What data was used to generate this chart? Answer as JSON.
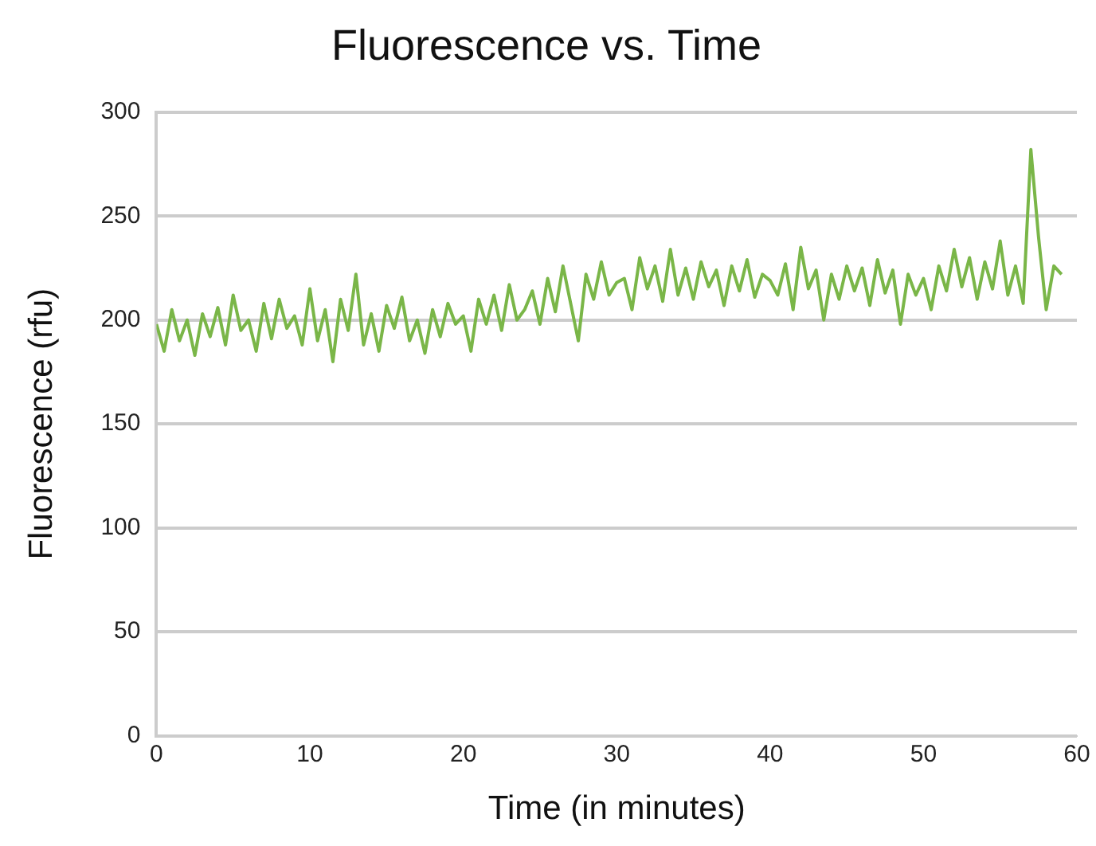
{
  "chart_data": {
    "type": "line",
    "title": "Fluorescence vs. Time",
    "xlabel": "Time (in minutes)",
    "ylabel": "Fluorescence (rfu)",
    "xlim": [
      0,
      60
    ],
    "xticks": [
      0,
      10,
      20,
      30,
      40,
      50,
      60
    ],
    "ylim": [
      0,
      300
    ],
    "yticks": [
      0,
      50,
      100,
      150,
      200,
      250,
      300
    ],
    "grid": "y",
    "legend": false,
    "marker": "none",
    "line_style": "solid",
    "series": [
      {
        "color": "#7ab648",
        "x": [
          0,
          0.5,
          1,
          1.5,
          2,
          2.5,
          3,
          3.5,
          4,
          4.5,
          5,
          5.5,
          6,
          6.5,
          7,
          7.5,
          8,
          8.5,
          9,
          9.5,
          10,
          10.5,
          11,
          11.5,
          12,
          12.5,
          13,
          13.5,
          14,
          14.5,
          15,
          15.5,
          16,
          16.5,
          17,
          17.5,
          18,
          18.5,
          19,
          19.5,
          20,
          20.5,
          21,
          21.5,
          22,
          22.5,
          23,
          23.5,
          24,
          24.5,
          25,
          25.5,
          26,
          26.5,
          27,
          27.5,
          28,
          28.5,
          29,
          29.5,
          30,
          30.5,
          31,
          31.5,
          32,
          32.5,
          33,
          33.5,
          34,
          34.5,
          35,
          35.5,
          36,
          36.5,
          37,
          37.5,
          38,
          38.5,
          39,
          39.5,
          40,
          40.5,
          41,
          41.5,
          42,
          42.5,
          43,
          43.5,
          44,
          44.5,
          45,
          45.5,
          46,
          46.5,
          47,
          47.5,
          48,
          48.5,
          49,
          49.5,
          50,
          50.5,
          51,
          51.5,
          52,
          52.5,
          53,
          53.5,
          54,
          54.5,
          55,
          55.5,
          56,
          56.5,
          57,
          57.5,
          58,
          58.5,
          59
        ],
        "values": [
          198,
          185,
          205,
          190,
          200,
          183,
          203,
          192,
          206,
          188,
          212,
          195,
          200,
          185,
          208,
          191,
          210,
          196,
          202,
          188,
          215,
          190,
          205,
          180,
          210,
          195,
          222,
          188,
          203,
          185,
          207,
          196,
          211,
          190,
          200,
          184,
          205,
          192,
          208,
          198,
          202,
          185,
          210,
          198,
          212,
          195,
          217,
          200,
          205,
          214,
          198,
          220,
          204,
          226,
          208,
          190,
          222,
          210,
          228,
          212,
          218,
          220,
          205,
          230,
          215,
          226,
          209,
          234,
          212,
          225,
          210,
          228,
          216,
          224,
          207,
          226,
          214,
          229,
          211,
          222,
          219,
          212,
          227,
          205,
          235,
          215,
          224,
          200,
          222,
          210,
          226,
          214,
          225,
          207,
          229,
          213,
          224,
          198,
          222,
          212,
          220,
          205,
          226,
          214,
          234,
          216,
          230,
          210,
          228,
          215,
          238,
          212,
          226,
          208,
          282,
          240,
          205,
          226,
          222
        ]
      }
    ]
  }
}
